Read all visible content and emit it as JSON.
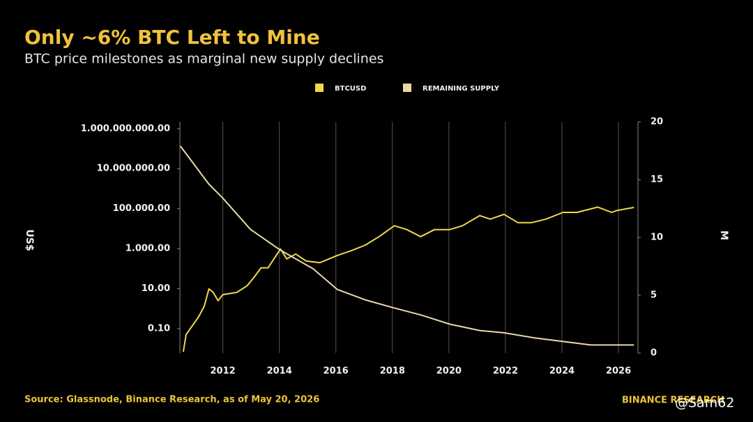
{
  "chart_data": {
    "type": "line",
    "title": "Only ~6% BTC Left to Mine",
    "subtitle": "BTC price milestones as marginal new supply declines",
    "y_label": "US$",
    "y2_label": "M",
    "source": "Source: Glassnode, Binance Research, as of May 20, 2026",
    "brand": "BINANCE RESEARCH",
    "watermark": "@Sam62",
    "log_y": true,
    "grid": "x",
    "legend": "top",
    "xlim": [
      2010.48,
      2026.69
    ],
    "xticks": [
      2012,
      2014,
      2016,
      2018,
      2020,
      2022,
      2024,
      2026
    ],
    "ylim": [
      0.006,
      2200000000
    ],
    "yticks": [
      {
        "value": 1000000000,
        "label": "1.000.000.000.00"
      },
      {
        "value": 10000000,
        "label": "10.000.000.00"
      },
      {
        "value": 100000,
        "label": "100.000.00"
      },
      {
        "value": 1000,
        "label": "1.000.00"
      },
      {
        "value": 10,
        "label": "10.00"
      },
      {
        "value": 0.1,
        "label": "0.10"
      }
    ],
    "y2lim": [
      0,
      20
    ],
    "y2ticks": [
      0,
      5,
      10,
      15,
      20
    ],
    "series": [
      {
        "name": "BTCUSD",
        "color": "#f0d84b",
        "x": [
          2010.6,
          2010.7,
          2010.89,
          2011.14,
          2011.34,
          2011.51,
          2011.66,
          2011.83,
          2012.0,
          2012.49,
          2012.86,
          2013.11,
          2013.35,
          2013.6,
          2013.84,
          2014.04,
          2014.26,
          2014.58,
          2014.95,
          2015.44,
          2016.05,
          2016.55,
          2017.04,
          2017.53,
          2018.07,
          2018.51,
          2019.0,
          2019.49,
          2020.03,
          2020.48,
          2021.09,
          2021.46,
          2021.95,
          2022.44,
          2022.93,
          2023.43,
          2024.04,
          2024.53,
          2025.27,
          2025.76,
          2025.93,
          2026.55
        ],
        "values": [
          0.007,
          0.05,
          0.12,
          0.39,
          1.3,
          9.8,
          6.5,
          2.5,
          5,
          6.5,
          14,
          38,
          110,
          110,
          360,
          960,
          310,
          540,
          240,
          200,
          460,
          800,
          1500,
          4000,
          14000,
          9000,
          4000,
          9000,
          9000,
          14000,
          45000,
          30000,
          52000,
          20000,
          20000,
          30000,
          65000,
          65000,
          120000,
          65000,
          80000,
          115000
        ]
      },
      {
        "name": "REMAINING SUPPLY",
        "color": "#ead9a8",
        "axis": "y2",
        "x": [
          2010.5,
          2011.51,
          2012.0,
          2012.98,
          2014.04,
          2015.19,
          2016.05,
          2017.04,
          2018.07,
          2019.0,
          2020.03,
          2021.09,
          2021.95,
          2023.06,
          2024.04,
          2025.02,
          2026.55
        ],
        "values": [
          17.9,
          14.6,
          13.4,
          10.7,
          8.9,
          7.3,
          5.5,
          4.6,
          3.9,
          3.3,
          2.5,
          1.95,
          1.75,
          1.3,
          1.0,
          0.7,
          0.7
        ]
      }
    ]
  }
}
